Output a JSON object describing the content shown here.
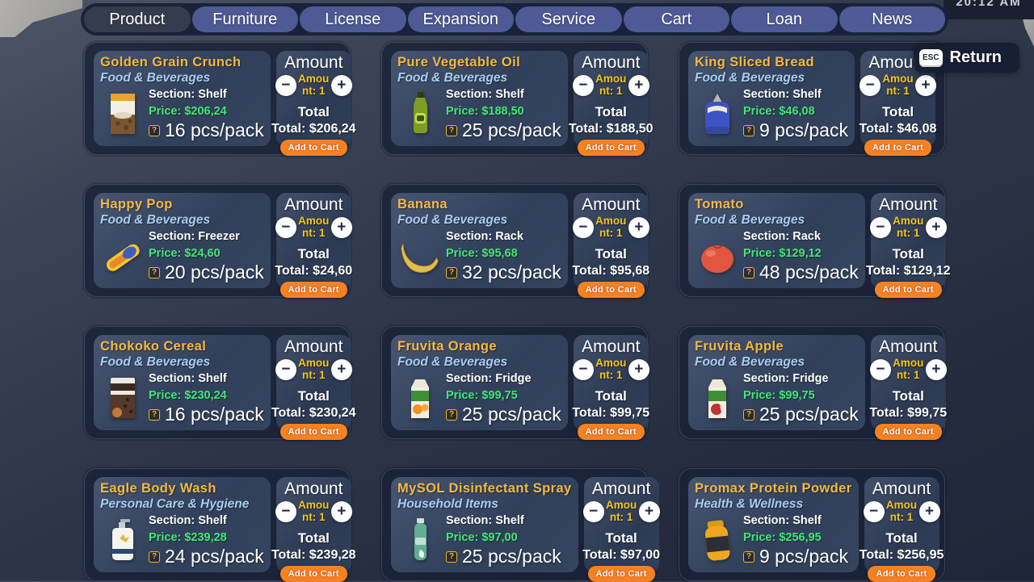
{
  "nav": {
    "tabs": [
      {
        "label": "Product",
        "active": true
      },
      {
        "label": "Furniture",
        "active": false
      },
      {
        "label": "License",
        "active": false
      },
      {
        "label": "Expansion",
        "active": false
      },
      {
        "label": "Service",
        "active": false
      },
      {
        "label": "Cart",
        "active": false
      },
      {
        "label": "Loan",
        "active": false
      },
      {
        "label": "News",
        "active": false
      }
    ]
  },
  "clock": {
    "text": "20:12 AM"
  },
  "return_button": {
    "key": "ESC",
    "label": "Return"
  },
  "card_template": {
    "amount_title": "Amount",
    "amount_label": "Amount: 1",
    "minus": "−",
    "plus": "+",
    "total_title": "Total",
    "section_label": "Section:",
    "price_label": "Price:",
    "total_label": "Total:",
    "pack_icon_glyph": "?",
    "add_to_cart": "Add to Cart"
  },
  "colors": {
    "accent_orange": "#f58220",
    "name_gold": "#f5b942",
    "price_green": "#42e87a",
    "amount_yellow": "#f5c51d",
    "tab_blue": "#4d5a95",
    "panel_navy": "#19223a"
  },
  "products": [
    {
      "name": "Golden Grain Crunch",
      "category": "Food & Beverages",
      "section": "Shelf",
      "price": "$206,24",
      "pack": "16 pcs/pack",
      "total": "$206,24",
      "image": "golden-grain-crunch-image"
    },
    {
      "name": "Pure Vegetable Oil",
      "category": "Food & Beverages",
      "section": "Shelf",
      "price": "$188,50",
      "pack": "25 pcs/pack",
      "total": "$188,50",
      "image": "pure-vegetable-oil-image"
    },
    {
      "name": "King Sliced Bread",
      "category": "Food & Beverages",
      "section": "Shelf",
      "price": "$46,08",
      "pack": "9 pcs/pack",
      "total": "$46,08",
      "image": "king-sliced-bread-image"
    },
    {
      "name": "Happy Pop",
      "category": "Food & Beverages",
      "section": "Freezer",
      "price": "$24,60",
      "pack": "20 pcs/pack",
      "total": "$24,60",
      "image": "happy-pop-image"
    },
    {
      "name": "Banana",
      "category": "Food & Beverages",
      "section": "Rack",
      "price": "$95,68",
      "pack": "32 pcs/pack",
      "total": "$95,68",
      "image": "banana-image"
    },
    {
      "name": "Tomato",
      "category": "Food & Beverages",
      "section": "Rack",
      "price": "$129,12",
      "pack": "48 pcs/pack",
      "total": "$129,12",
      "image": "tomato-image"
    },
    {
      "name": "Chokoko Cereal",
      "category": "Food & Beverages",
      "section": "Shelf",
      "price": "$230,24",
      "pack": "16 pcs/pack",
      "total": "$230,24",
      "image": "chokoko-cereal-image"
    },
    {
      "name": "Fruvita Orange",
      "category": "Food & Beverages",
      "section": "Fridge",
      "price": "$99,75",
      "pack": "25 pcs/pack",
      "total": "$99,75",
      "image": "fruvita-orange-image"
    },
    {
      "name": "Fruvita Apple",
      "category": "Food & Beverages",
      "section": "Fridge",
      "price": "$99,75",
      "pack": "25 pcs/pack",
      "total": "$99,75",
      "image": "fruvita-apple-image"
    },
    {
      "name": "Eagle Body Wash",
      "category": "Personal Care & Hygiene",
      "section": "Shelf",
      "price": "$239,28",
      "pack": "24 pcs/pack",
      "total": "$239,28",
      "image": "eagle-body-wash-image"
    },
    {
      "name": "MySOL Disinfectant Spray",
      "category": "Household Items",
      "section": "Shelf",
      "price": "$97,00",
      "pack": "25 pcs/pack",
      "total": "$97,00",
      "image": "mysol-disinfectant-spray-image"
    },
    {
      "name": "Promax Protein Powder",
      "category": "Health & Wellness",
      "section": "Shelf",
      "price": "$256,95",
      "pack": "9 pcs/pack",
      "total": "$256,95",
      "image": "promax-protein-powder-image"
    }
  ]
}
